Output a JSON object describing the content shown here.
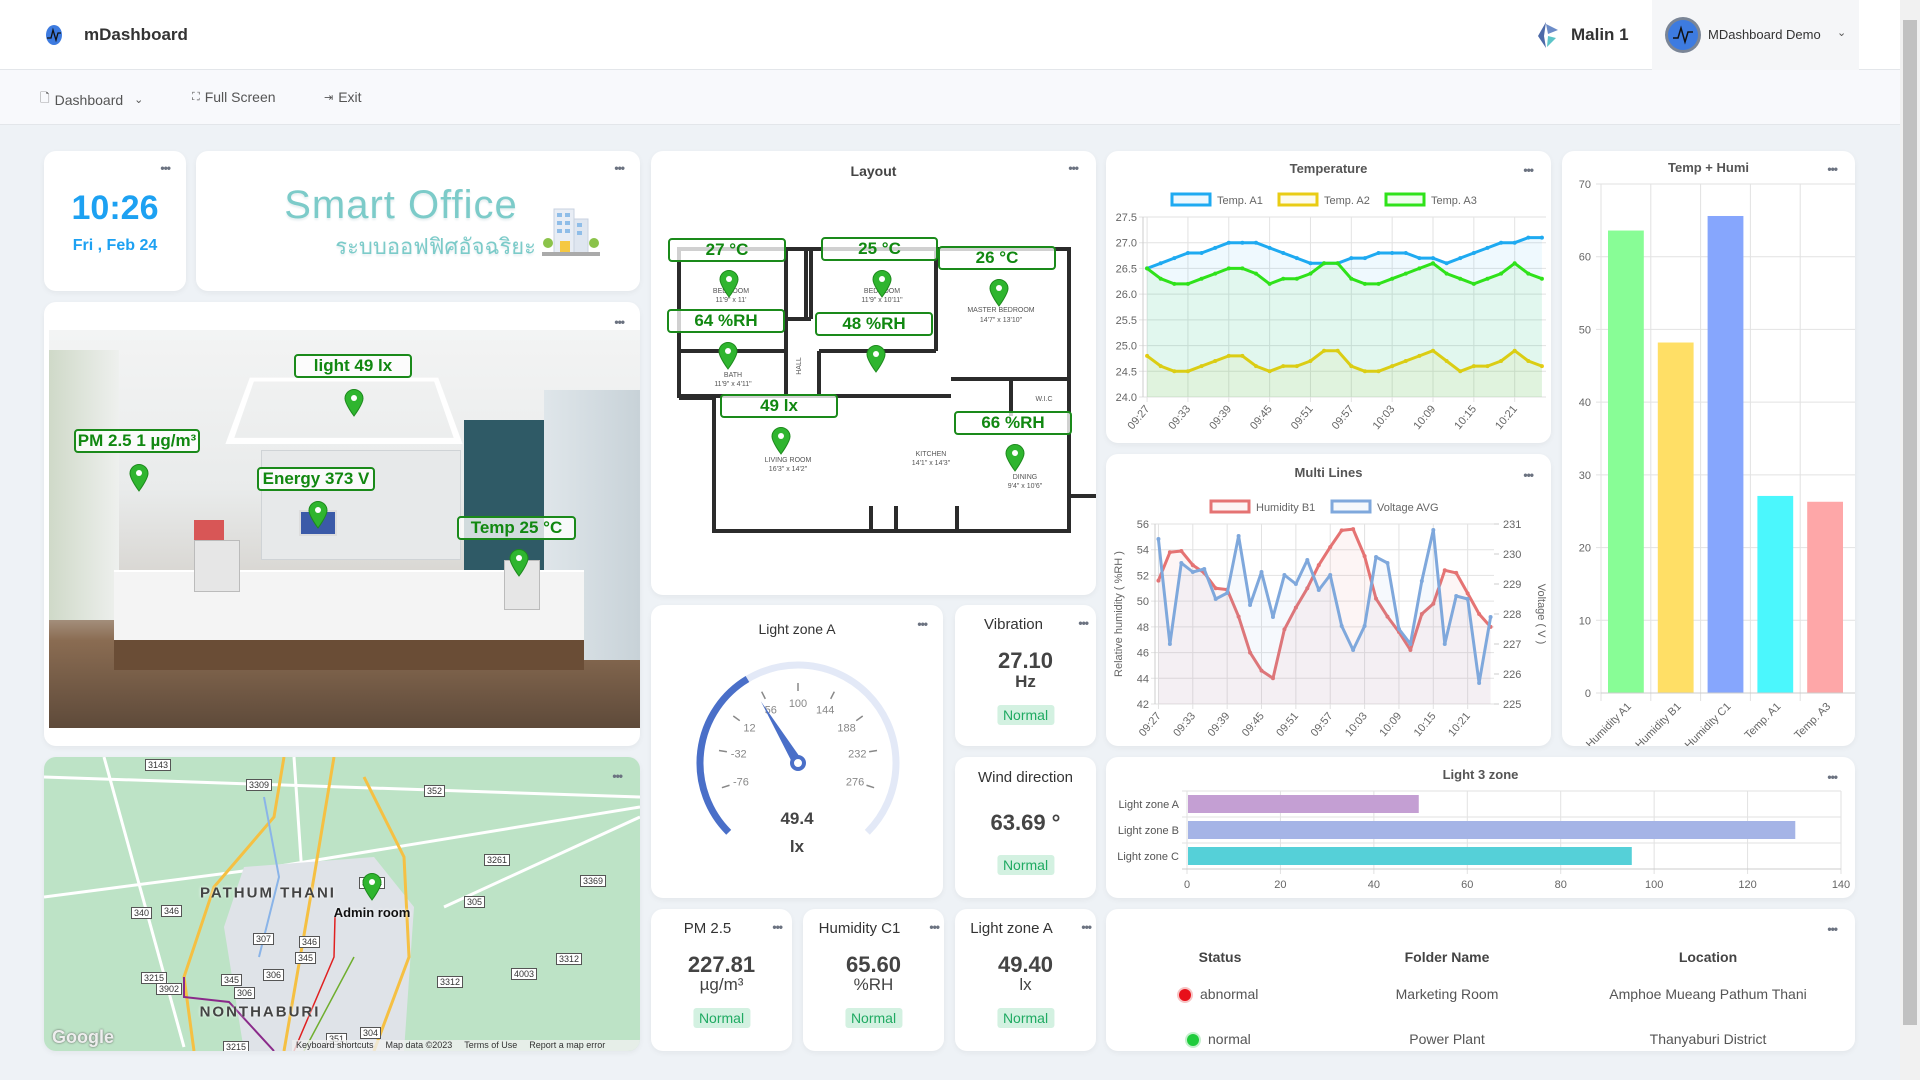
{
  "header": {
    "app_title": "mDashboard",
    "org_name": "Malin 1",
    "user_name": "MDashboard Demo"
  },
  "toolbar": {
    "dashboard": "Dashboard",
    "full_screen": "Full Screen",
    "exit": "Exit"
  },
  "clock": {
    "time": "10:26",
    "date": "Fri , Feb 24"
  },
  "banner": {
    "title": "Smart Office",
    "subtitle_thai": "ระบบออฟฟิศอัจฉริยะ"
  },
  "office_photo": {
    "tags": [
      "light 49 lx",
      "PM 2.5 1  µg/m³",
      "Energy 373 V",
      "Temp 25 °C"
    ]
  },
  "map": {
    "places": [
      "PATHUM THANI",
      "NONTHABURI"
    ],
    "marker_label": "Admin room",
    "shields": [
      "3143",
      "3309",
      "352",
      "3261",
      "3214",
      "3369",
      "340",
      "346",
      "305",
      "307",
      "346",
      "345",
      "3215",
      "345",
      "3312",
      "4003",
      "3312",
      "306",
      "3902",
      "306",
      "304",
      "351",
      "3215"
    ],
    "logo": "Google",
    "footer": [
      "Keyboard shortcuts",
      "Map data ©2023",
      "Terms of Use",
      "Report a map error"
    ]
  },
  "layout": {
    "title": "Layout",
    "tags": [
      "27 °C",
      "25 °C",
      "26 °C",
      "64 %RH",
      "48 %RH",
      "49 lx",
      "66 %RH"
    ],
    "rooms": [
      "BEDROOM",
      "11'9\" x 11'",
      "BEDROOM",
      "11'9\" x 10'11\"",
      "MASTER BEDROOM",
      "14'7\" x 13'10\"",
      "BATH",
      "11'9\" x 4'11\"",
      "HALL",
      "LIVING ROOM",
      "16'3\" x 14'2\"",
      "KITCHEN",
      "14'1\" x 14'3\"",
      "DINING",
      "9'4\" x 10'6\"",
      "W.I.C"
    ]
  },
  "gauge": {
    "title": "Light zone A",
    "value": 49.4,
    "value_text": "49.4",
    "unit": "lx",
    "ticks": [
      -76,
      -32,
      12,
      56,
      100,
      144,
      188,
      232,
      276
    ],
    "range": [
      -120,
      320
    ],
    "color": "#4a6fc8"
  },
  "stats": [
    {
      "title": "Vibration",
      "value": "27.10",
      "unit": "Hz",
      "status": "Normal"
    },
    {
      "title": "Wind direction",
      "value": "63.69 °",
      "unit": "",
      "status": "Normal"
    },
    {
      "title": "PM 2.5",
      "value": "227.81",
      "unit": "µg/m³",
      "status": "Normal"
    },
    {
      "title": "Humidity C1",
      "value": "65.60",
      "unit": "%RH",
      "status": "Normal"
    },
    {
      "title": "Light zone A",
      "value": "49.40",
      "unit": "lx",
      "status": "Normal"
    }
  ],
  "table": {
    "headers": [
      "Status",
      "Folder Name",
      "Location"
    ],
    "rows": [
      {
        "status": "abnormal",
        "status_color": "#e8101a",
        "folder": "Marketing Room",
        "location": "Amphoe Mueang Pathum Thani"
      },
      {
        "status": "normal",
        "status_color": "#1fcc3c",
        "folder": "Power Plant",
        "location": "Thanyaburi District"
      }
    ]
  },
  "chart_data": [
    {
      "id": "temperature",
      "type": "line",
      "title": "Temperature",
      "ylim": [
        24.0,
        27.5
      ],
      "yticks": [
        24.0,
        24.5,
        25.0,
        25.5,
        26.0,
        26.5,
        27.0,
        27.5
      ],
      "x": [
        "09:27",
        "09:29",
        "09:31",
        "09:33",
        "09:35",
        "09:37",
        "09:39",
        "09:41",
        "09:43",
        "09:45",
        "09:47",
        "09:49",
        "09:51",
        "09:53",
        "09:55",
        "09:57",
        "09:59",
        "10:01",
        "10:03",
        "10:05",
        "10:07",
        "10:09",
        "10:11",
        "10:13",
        "10:15",
        "10:17",
        "10:19",
        "10:21",
        "10:23",
        "10:25"
      ],
      "xticks": [
        "09:27",
        "09:33",
        "09:39",
        "09:45",
        "09:51",
        "09:57",
        "10:03",
        "10:09",
        "10:15",
        "10:21"
      ],
      "legend": "top",
      "grid": true,
      "series": [
        {
          "name": "Temp. A1",
          "color": "#1eaaf1",
          "values": [
            26.5,
            26.6,
            26.7,
            26.8,
            26.8,
            26.9,
            27.0,
            27.0,
            27.0,
            26.9,
            26.8,
            26.7,
            26.6,
            26.6,
            26.6,
            26.7,
            26.7,
            26.8,
            26.8,
            26.8,
            26.7,
            26.7,
            26.6,
            26.7,
            26.8,
            26.9,
            27.0,
            27.0,
            27.1,
            27.1
          ]
        },
        {
          "name": "Temp. A2",
          "color": "#e9cc14",
          "values": [
            24.8,
            24.6,
            24.5,
            24.5,
            24.6,
            24.7,
            24.8,
            24.8,
            24.6,
            24.5,
            24.6,
            24.6,
            24.7,
            24.9,
            24.9,
            24.6,
            24.5,
            24.5,
            24.6,
            24.7,
            24.8,
            24.9,
            24.7,
            24.5,
            24.6,
            24.6,
            24.7,
            24.9,
            24.7,
            24.6
          ]
        },
        {
          "name": "Temp. A3",
          "color": "#2fe21a",
          "values": [
            26.5,
            26.3,
            26.2,
            26.2,
            26.3,
            26.4,
            26.5,
            26.5,
            26.4,
            26.2,
            26.3,
            26.3,
            26.4,
            26.6,
            26.6,
            26.3,
            26.2,
            26.2,
            26.3,
            26.4,
            26.5,
            26.6,
            26.4,
            26.3,
            26.2,
            26.3,
            26.4,
            26.6,
            26.4,
            26.3
          ]
        }
      ]
    },
    {
      "id": "multi_lines",
      "type": "line",
      "title": "Multi Lines",
      "ylabel": "Relative humidity ( %RH )",
      "y2label": "Voltage ( V )",
      "ylim": [
        42,
        56
      ],
      "y2lim": [
        225,
        231
      ],
      "yticks": [
        42,
        44,
        46,
        48,
        50,
        52,
        54,
        56
      ],
      "y2ticks": [
        225,
        226,
        227,
        228,
        229,
        230,
        231
      ],
      "x": [
        "09:27",
        "09:29",
        "09:31",
        "09:33",
        "09:35",
        "09:37",
        "09:39",
        "09:41",
        "09:43",
        "09:45",
        "09:47",
        "09:49",
        "09:51",
        "09:53",
        "09:55",
        "09:57",
        "09:59",
        "10:01",
        "10:03",
        "10:05",
        "10:07",
        "10:09",
        "10:11",
        "10:13",
        "10:15",
        "10:17",
        "10:19",
        "10:21",
        "10:23",
        "10:25"
      ],
      "xticks": [
        "09:27",
        "09:33",
        "09:39",
        "09:45",
        "09:51",
        "09:57",
        "10:03",
        "10:09",
        "10:15",
        "10:21"
      ],
      "legend": "top",
      "grid": true,
      "series": [
        {
          "name": "Humidity B1",
          "color": "#e57373",
          "axis": "left",
          "values": [
            51.6,
            53.8,
            53.9,
            52.8,
            52.2,
            51.0,
            50.9,
            48.8,
            46.0,
            44.6,
            44.0,
            47.8,
            49.5,
            51.0,
            52.8,
            54.2,
            55.5,
            55.6,
            53.5,
            50.2,
            48.8,
            47.6,
            46.2,
            49.0,
            49.8,
            52.4,
            52.2,
            50.6,
            49.0,
            48.0
          ]
        },
        {
          "name": "Voltage AVG",
          "color": "#7fa8dc",
          "axis": "right",
          "values": [
            230.5,
            227.0,
            229.7,
            229.4,
            229.5,
            228.5,
            228.7,
            230.6,
            228.3,
            229.4,
            227.9,
            229.3,
            229.0,
            229.8,
            228.8,
            229.3,
            227.6,
            226.8,
            227.6,
            229.9,
            229.7,
            227.5,
            227.0,
            229.1,
            230.8,
            227.0,
            228.6,
            228.5,
            225.7,
            227.9
          ]
        }
      ]
    },
    {
      "id": "temp_humi",
      "type": "bar",
      "title": "Temp + Humi",
      "categories": [
        "Humidity A1",
        "Humidity B1",
        "Humidity C1",
        "Temp. A1",
        "Temp. A3"
      ],
      "values": [
        63.6,
        48.2,
        65.6,
        27.1,
        26.3
      ],
      "colors": [
        "#88fd96",
        "#ffdf66",
        "#86a6fd",
        "#4bf7fd",
        "#fea7a8"
      ],
      "ylim": [
        0,
        70
      ],
      "yticks": [
        0,
        10,
        20,
        30,
        40,
        50,
        60,
        70
      ],
      "grid": true
    },
    {
      "id": "light_3_zone",
      "type": "bar",
      "orientation": "horizontal",
      "title": "Light 3 zone",
      "categories": [
        "Light zone A",
        "Light zone B",
        "Light zone C"
      ],
      "values": [
        49.4,
        130,
        95
      ],
      "colors": [
        "#c49fd3",
        "#a5b4e6",
        "#55d0d8"
      ],
      "xlim": [
        0,
        140
      ],
      "xticks": [
        0,
        20,
        40,
        60,
        80,
        100,
        120,
        140
      ],
      "grid": true
    }
  ]
}
